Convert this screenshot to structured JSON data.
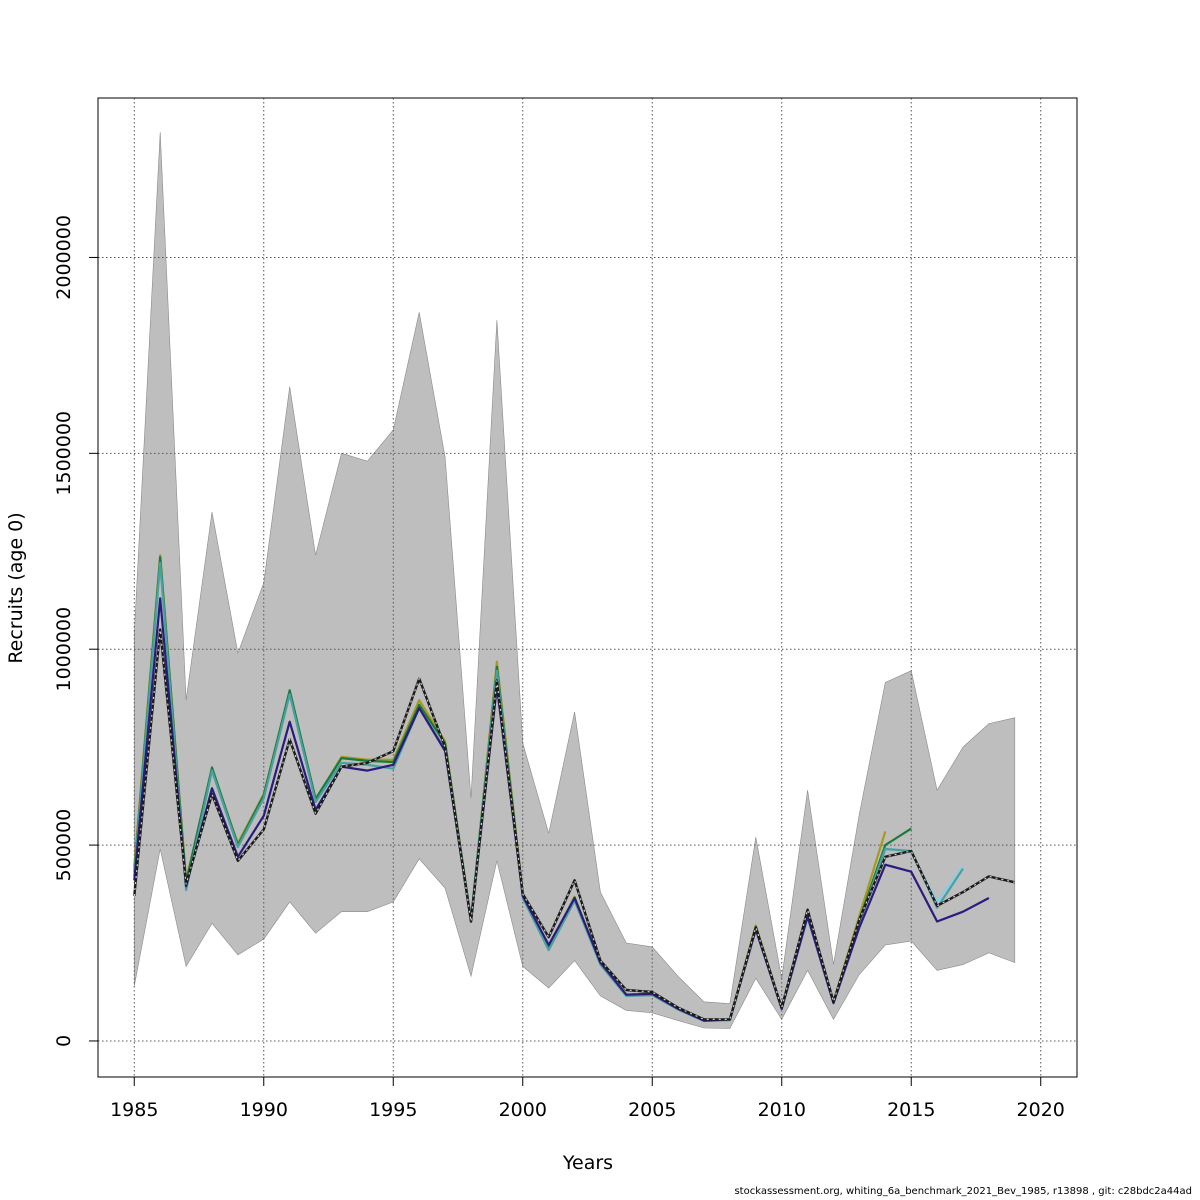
{
  "chart_data": {
    "type": "line",
    "xlabel": "Years",
    "ylabel": "Recruits (age 0)",
    "xlim": [
      1983.6,
      2021.4
    ],
    "ylim": [
      -92000,
      2407000
    ],
    "x_ticks": [
      1985,
      1990,
      1995,
      2000,
      2005,
      2010,
      2015,
      2020
    ],
    "y_ticks": [
      0,
      500000,
      1000000,
      1500000,
      2000000
    ],
    "x_tick_labels": [
      "1985",
      "1990",
      "1995",
      "2000",
      "2005",
      "2010",
      "2015",
      "2020"
    ],
    "y_tick_labels": [
      "0",
      "500000",
      "1000000",
      "1500000",
      "2000000"
    ],
    "grid": true,
    "band": {
      "color": "#bebebe",
      "x": [
        1985,
        1986,
        1987,
        1988,
        1989,
        1990,
        1991,
        1992,
        1993,
        1994,
        1995,
        1996,
        1997,
        1998,
        1999,
        2000,
        2001,
        2002,
        2003,
        2004,
        2005,
        2006,
        2007,
        2008,
        2009,
        2010,
        2011,
        2012,
        2013,
        2014,
        2015,
        2016,
        2017,
        2018,
        2019
      ],
      "upper": [
        1040000,
        2320000,
        870000,
        1350000,
        990000,
        1170000,
        1670000,
        1240000,
        1500000,
        1480000,
        1560000,
        1860000,
        1490000,
        620000,
        1840000,
        760000,
        530000,
        840000,
        380000,
        250000,
        240000,
        165000,
        100000,
        95000,
        520000,
        160000,
        640000,
        195000,
        580000,
        915000,
        945000,
        640000,
        750000,
        810000,
        825000
      ],
      "lower": [
        140000,
        490000,
        190000,
        300000,
        220000,
        260000,
        355000,
        275000,
        330000,
        330000,
        355000,
        465000,
        390000,
        165000,
        460000,
        190000,
        135000,
        205000,
        115000,
        78000,
        72000,
        52000,
        33000,
        32000,
        160000,
        55000,
        180000,
        55000,
        170000,
        245000,
        255000,
        180000,
        195000,
        225000,
        200000
      ]
    },
    "series": [
      {
        "color": "#1a1a1a",
        "dashed": true,
        "x": [
          1985,
          1986,
          1987,
          1988,
          1989,
          1990,
          1991,
          1992,
          1993,
          1994,
          1995,
          1996,
          1997,
          1998,
          1999,
          2000,
          2001,
          2002,
          2003,
          2004,
          2005,
          2006,
          2007,
          2008,
          2009,
          2010,
          2011,
          2012,
          2013,
          2014,
          2015,
          2016,
          2017,
          2018,
          2019
        ],
        "values": [
          370000,
          1050000,
          400000,
          630000,
          460000,
          540000,
          770000,
          580000,
          700000,
          710000,
          740000,
          925000,
          750000,
          305000,
          920000,
          375000,
          265000,
          410000,
          205000,
          130000,
          125000,
          85000,
          55000,
          55000,
          290000,
          85000,
          335000,
          100000,
          310000,
          470000,
          485000,
          345000,
          380000,
          420000,
          405000
        ]
      },
      {
        "color": "#2a1b7e",
        "dashed": false,
        "x": [
          1985,
          1986,
          1987,
          1988,
          1989,
          1990,
          1991,
          1992,
          1993,
          1994,
          1995,
          1996,
          1997,
          1998,
          1999,
          2000,
          2001,
          2002,
          2003,
          2004,
          2005,
          2006,
          2007,
          2008,
          2009,
          2010,
          2011,
          2012,
          2013,
          2014,
          2015,
          2016,
          2017,
          2018
        ],
        "values": [
          410000,
          1130000,
          395000,
          645000,
          470000,
          575000,
          815000,
          590000,
          700000,
          690000,
          705000,
          850000,
          740000,
          305000,
          905000,
          370000,
          245000,
          365000,
          200000,
          118000,
          120000,
          82000,
          52000,
          55000,
          285000,
          82000,
          318000,
          97000,
          290000,
          450000,
          432000,
          305000,
          330000,
          365000
        ]
      },
      {
        "color": "#4aa0a0",
        "dashed": false,
        "x": [
          1985,
          1986,
          1987,
          1988,
          1989,
          1990,
          1991,
          1992,
          1993,
          1994,
          1995,
          1996,
          1997,
          1998,
          1999,
          2000,
          2001,
          2002,
          2003,
          2004,
          2005,
          2006,
          2007,
          2008,
          2009,
          2010,
          2011,
          2012,
          2013,
          2014,
          2015,
          2016,
          2017
        ],
        "values": [
          420000,
          1220000,
          385000,
          690000,
          495000,
          620000,
          885000,
          610000,
          710000,
          705000,
          695000,
          850000,
          745000,
          308000,
          945000,
          365000,
          232000,
          358000,
          195000,
          115000,
          117000,
          80000,
          51000,
          53000,
          284000,
          81000,
          316000,
          96000,
          300000,
          490000,
          485000,
          340000,
          440000
        ]
      },
      {
        "color": "#87ceeb",
        "dashed": false,
        "x": [
          2013,
          2014,
          2015,
          2016,
          2017
        ],
        "values": [
          300000,
          490000,
          480000,
          355000,
          445000
        ]
      },
      {
        "color": "#1a7a3a",
        "dashed": false,
        "x": [
          1985,
          1986,
          1987,
          1988,
          1989,
          1990,
          1991,
          1992,
          1993,
          1994,
          1995,
          1996,
          1997,
          1998,
          1999,
          2000,
          2001,
          2002,
          2003,
          2004,
          2005,
          2006,
          2007,
          2008,
          2009,
          2010,
          2011,
          2012,
          2013,
          2014,
          2015
        ],
        "values": [
          430000,
          1235000,
          405000,
          698000,
          500000,
          628000,
          895000,
          618000,
          722000,
          715000,
          712000,
          858000,
          760000,
          310000,
          955000,
          372000,
          238000,
          366000,
          198000,
          118000,
          120000,
          82000,
          52000,
          55000,
          290000,
          83000,
          322000,
          98000,
          310000,
          500000,
          542000
        ]
      },
      {
        "color": "#a89a1f",
        "dashed": false,
        "x": [
          1985,
          1986,
          1987,
          1988,
          1989,
          1990,
          1991,
          1992,
          1993,
          1994,
          1995,
          1996,
          1997,
          1998,
          1999,
          2000,
          2001,
          2002,
          2003,
          2004,
          2005,
          2006,
          2007,
          2008,
          2009,
          2010,
          2011,
          2012,
          2013,
          2014
        ],
        "values": [
          445000,
          1240000,
          410000,
          690000,
          505000,
          630000,
          892000,
          615000,
          725000,
          718000,
          718000,
          870000,
          765000,
          305000,
          968000,
          375000,
          240000,
          368000,
          198000,
          118000,
          120000,
          82000,
          52000,
          55000,
          295000,
          84000,
          330000,
          100000,
          320000,
          535000
        ]
      }
    ]
  },
  "footer": {
    "text": "stockassessment.org, whiting_6a_benchmark_2021_Bev_1985, r13898 , git: c28bdc2a44ad"
  }
}
